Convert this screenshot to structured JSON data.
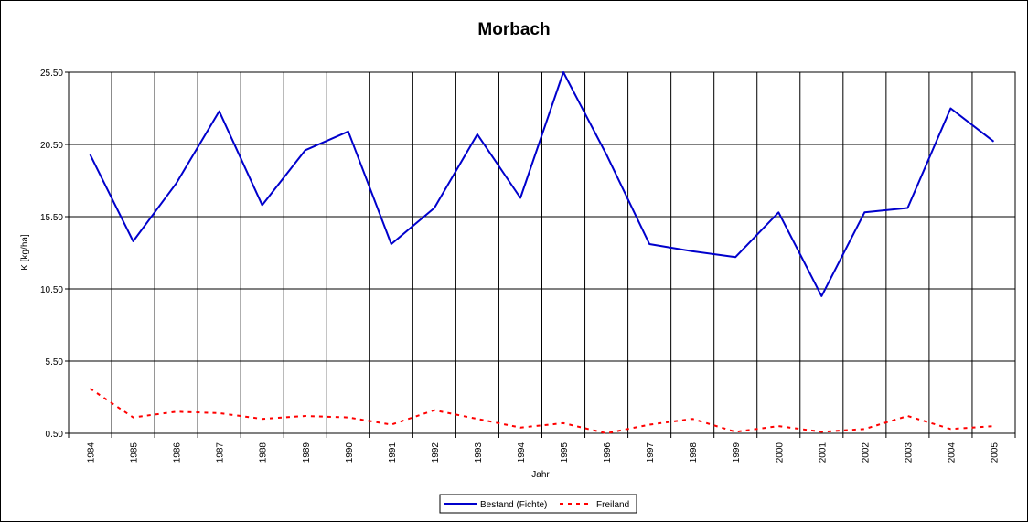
{
  "chart_data": {
    "type": "line",
    "title": "Morbach",
    "xlabel": "Jahr",
    "ylabel": "K [kg/ha]",
    "x": [
      "1984",
      "1985",
      "1986",
      "1987",
      "1988",
      "1989",
      "1990",
      "1991",
      "1992",
      "1993",
      "1994",
      "1995",
      "1996",
      "1997",
      "1998",
      "1999",
      "2000",
      "2001",
      "2002",
      "2003",
      "2004",
      "2005"
    ],
    "yticks": [
      "0.50",
      "5.50",
      "10.50",
      "15.50",
      "20.50",
      "25.50"
    ],
    "ylim": [
      0.5,
      25.5
    ],
    "grid": true,
    "legend_position": "bottom-center",
    "series": [
      {
        "name": "Bestand (Fichte)",
        "color": "#0000CC",
        "style": "solid",
        "values": [
          19.8,
          13.8,
          17.8,
          22.8,
          16.3,
          20.1,
          21.4,
          13.6,
          16.1,
          21.2,
          16.8,
          25.5,
          19.8,
          13.6,
          13.1,
          12.7,
          15.8,
          10.0,
          15.8,
          16.1,
          23.0,
          20.7
        ]
      },
      {
        "name": "Freiland",
        "color": "#FF0000",
        "style": "dashed",
        "values": [
          3.6,
          1.6,
          2.0,
          1.9,
          1.5,
          1.7,
          1.6,
          1.1,
          2.1,
          1.5,
          0.9,
          1.2,
          0.5,
          1.1,
          1.5,
          0.6,
          1.0,
          0.6,
          0.8,
          1.7,
          0.8,
          1.0
        ]
      }
    ]
  }
}
